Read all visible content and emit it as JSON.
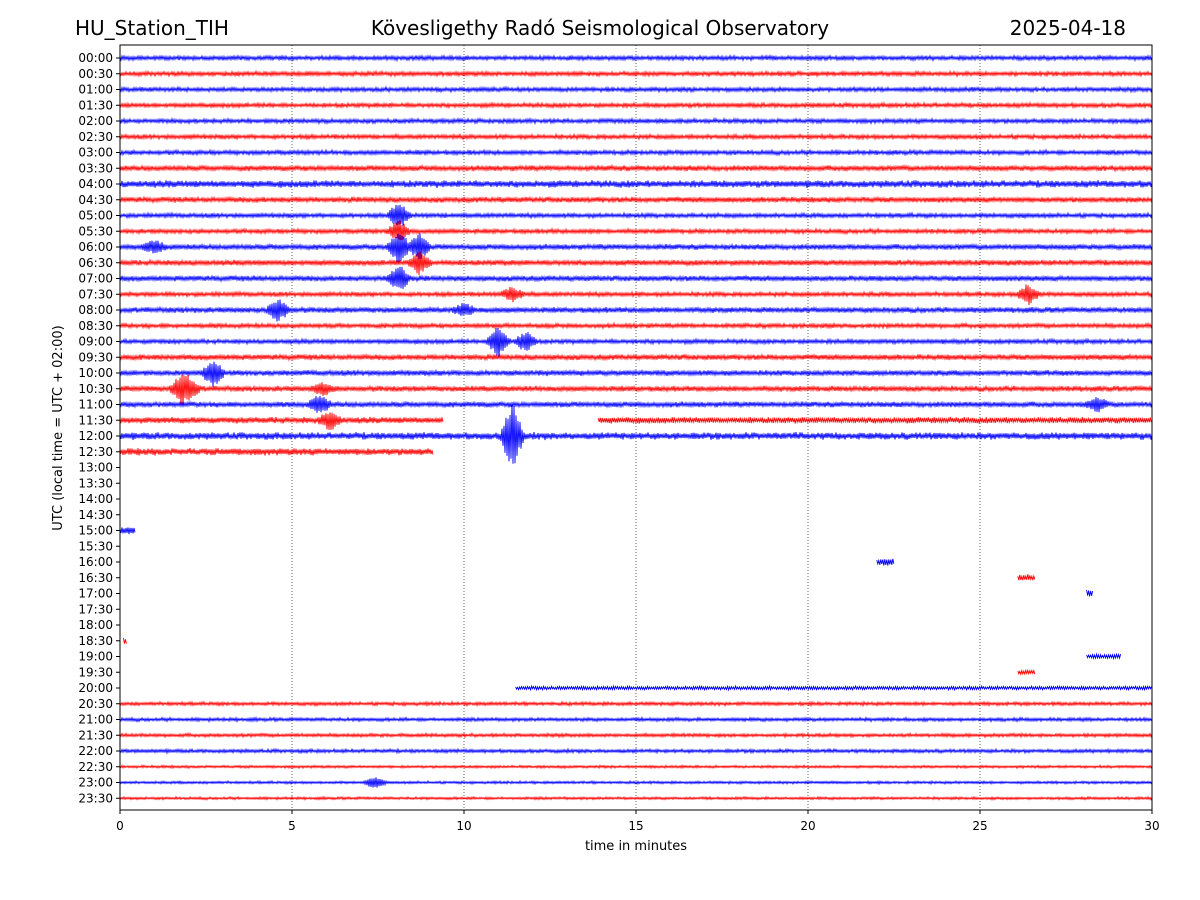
{
  "header": {
    "station": "HU_Station_TIH",
    "title": "Kövesligethy Radó Seismological Observatory",
    "date": "2025-04-18"
  },
  "chart_data": {
    "type": "line",
    "subtype": "helicorder",
    "xlabel": "time in minutes",
    "ylabel": "UTC (local time = UTC + 02:00)",
    "xlim": [
      0,
      30
    ],
    "x_ticks": [
      "0",
      "5",
      "10",
      "15",
      "20",
      "25",
      "30"
    ],
    "grid": "vertical dotted lines at 5-minute intervals",
    "colors": {
      "blue": "#0000ff",
      "red": "#ff0000"
    },
    "rows": [
      {
        "label": "00:00",
        "color": "blue",
        "segments": [
          [
            0,
            30
          ]
        ],
        "amp": 2.5
      },
      {
        "label": "00:30",
        "color": "red",
        "segments": [
          [
            0,
            30
          ]
        ],
        "amp": 2.5
      },
      {
        "label": "01:00",
        "color": "blue",
        "segments": [
          [
            0,
            30
          ]
        ],
        "amp": 2.5
      },
      {
        "label": "01:30",
        "color": "red",
        "segments": [
          [
            0,
            30
          ]
        ],
        "amp": 2.5
      },
      {
        "label": "02:00",
        "color": "blue",
        "segments": [
          [
            0,
            30
          ]
        ],
        "amp": 2.5
      },
      {
        "label": "02:30",
        "color": "red",
        "segments": [
          [
            0,
            30
          ]
        ],
        "amp": 2.5
      },
      {
        "label": "03:00",
        "color": "blue",
        "segments": [
          [
            0,
            30
          ]
        ],
        "amp": 2.5
      },
      {
        "label": "03:30",
        "color": "red",
        "segments": [
          [
            0,
            30
          ]
        ],
        "amp": 3
      },
      {
        "label": "04:00",
        "color": "blue",
        "segments": [
          [
            0,
            30
          ]
        ],
        "amp": 4
      },
      {
        "label": "04:30",
        "color": "red",
        "segments": [
          [
            0,
            30
          ]
        ],
        "amp": 3
      },
      {
        "label": "05:00",
        "color": "blue",
        "segments": [
          [
            0,
            30
          ]
        ],
        "amp": 2.5,
        "events": [
          [
            8.1,
            12
          ]
        ]
      },
      {
        "label": "05:30",
        "color": "red",
        "segments": [
          [
            0,
            30
          ]
        ],
        "amp": 2.5,
        "events": [
          [
            8.1,
            10
          ]
        ]
      },
      {
        "label": "06:00",
        "color": "blue",
        "segments": [
          [
            0,
            30
          ]
        ],
        "amp": 3,
        "events": [
          [
            8.1,
            16
          ],
          [
            8.7,
            12
          ],
          [
            1.0,
            5
          ]
        ]
      },
      {
        "label": "06:30",
        "color": "red",
        "segments": [
          [
            0,
            30
          ]
        ],
        "amp": 3,
        "events": [
          [
            8.7,
            10
          ]
        ]
      },
      {
        "label": "07:00",
        "color": "blue",
        "segments": [
          [
            0,
            30
          ]
        ],
        "amp": 3,
        "events": [
          [
            8.1,
            12
          ]
        ]
      },
      {
        "label": "07:30",
        "color": "red",
        "segments": [
          [
            0,
            30
          ]
        ],
        "amp": 2.5,
        "events": [
          [
            11.4,
            6
          ],
          [
            26.4,
            9
          ]
        ]
      },
      {
        "label": "08:00",
        "color": "blue",
        "segments": [
          [
            0,
            30
          ]
        ],
        "amp": 3,
        "events": [
          [
            4.6,
            10
          ],
          [
            10.0,
            5
          ]
        ]
      },
      {
        "label": "08:30",
        "color": "red",
        "segments": [
          [
            0,
            30
          ]
        ],
        "amp": 2.5
      },
      {
        "label": "09:00",
        "color": "blue",
        "segments": [
          [
            0,
            30
          ]
        ],
        "amp": 2.5,
        "events": [
          [
            11.0,
            16
          ],
          [
            11.8,
            9
          ]
        ]
      },
      {
        "label": "09:30",
        "color": "red",
        "segments": [
          [
            0,
            30
          ]
        ],
        "amp": 3
      },
      {
        "label": "10:00",
        "color": "blue",
        "segments": [
          [
            0,
            30
          ]
        ],
        "amp": 3,
        "events": [
          [
            2.7,
            12
          ]
        ]
      },
      {
        "label": "10:30",
        "color": "red",
        "segments": [
          [
            0,
            30
          ]
        ],
        "amp": 3,
        "events": [
          [
            1.8,
            16
          ],
          [
            2.0,
            12
          ],
          [
            5.9,
            5
          ]
        ]
      },
      {
        "label": "11:00",
        "color": "blue",
        "segments": [
          [
            0,
            30
          ]
        ],
        "amp": 3,
        "events": [
          [
            5.8,
            8
          ],
          [
            28.4,
            6
          ]
        ]
      },
      {
        "label": "11:30",
        "color": "red",
        "segments": [
          [
            0,
            9.4
          ],
          [
            13.9,
            30
          ]
        ],
        "amp": 3.5,
        "events": [
          [
            6.1,
            8
          ]
        ]
      },
      {
        "label": "12:00",
        "color": "blue",
        "segments": [
          [
            0,
            30
          ]
        ],
        "amp": 4,
        "events": [
          [
            11.4,
            34
          ]
        ]
      },
      {
        "label": "12:30",
        "color": "red",
        "segments": [
          [
            0,
            9.1
          ]
        ],
        "amp": 4
      },
      {
        "label": "13:00",
        "color": "blue",
        "segments": []
      },
      {
        "label": "13:30",
        "color": "red",
        "segments": []
      },
      {
        "label": "14:00",
        "color": "blue",
        "segments": []
      },
      {
        "label": "14:30",
        "color": "red",
        "segments": []
      },
      {
        "label": "15:00",
        "color": "blue",
        "segments": [
          [
            0,
            0.45
          ]
        ],
        "amp": 4
      },
      {
        "label": "15:30",
        "color": "red",
        "segments": []
      },
      {
        "label": "16:00",
        "color": "blue",
        "segments": [
          [
            22.0,
            22.5
          ]
        ],
        "amp": 4
      },
      {
        "label": "16:30",
        "color": "red",
        "segments": [
          [
            26.1,
            26.6
          ]
        ],
        "amp": 4
      },
      {
        "label": "17:00",
        "color": "blue",
        "segments": [
          [
            28.1,
            28.3
          ]
        ],
        "amp": 4
      },
      {
        "label": "17:30",
        "color": "red",
        "segments": []
      },
      {
        "label": "18:00",
        "color": "blue",
        "segments": []
      },
      {
        "label": "18:30",
        "color": "red",
        "segments": [
          [
            0.1,
            0.2
          ]
        ],
        "amp": 4
      },
      {
        "label": "19:00",
        "color": "blue",
        "segments": [
          [
            28.1,
            29.1
          ]
        ],
        "amp": 2.5
      },
      {
        "label": "19:30",
        "color": "red",
        "segments": [
          [
            26.1,
            26.6
          ]
        ],
        "amp": 2.5
      },
      {
        "label": "20:00",
        "color": "blue",
        "segments": [
          [
            11.5,
            30
          ]
        ],
        "amp": 2
      },
      {
        "label": "20:30",
        "color": "red",
        "segments": [
          [
            0,
            30
          ]
        ],
        "amp": 2
      },
      {
        "label": "21:00",
        "color": "blue",
        "segments": [
          [
            0,
            30
          ]
        ],
        "amp": 2
      },
      {
        "label": "21:30",
        "color": "red",
        "segments": [
          [
            0,
            30
          ]
        ],
        "amp": 2
      },
      {
        "label": "22:00",
        "color": "blue",
        "segments": [
          [
            0,
            30
          ]
        ],
        "amp": 2
      },
      {
        "label": "22:30",
        "color": "red",
        "segments": [
          [
            0,
            30
          ]
        ],
        "amp": 1.5
      },
      {
        "label": "23:00",
        "color": "blue",
        "segments": [
          [
            0,
            30
          ]
        ],
        "amp": 1.5,
        "events": [
          [
            7.4,
            5
          ]
        ]
      },
      {
        "label": "23:30",
        "color": "red",
        "segments": [
          [
            0,
            30
          ]
        ],
        "amp": 1.5
      }
    ]
  }
}
